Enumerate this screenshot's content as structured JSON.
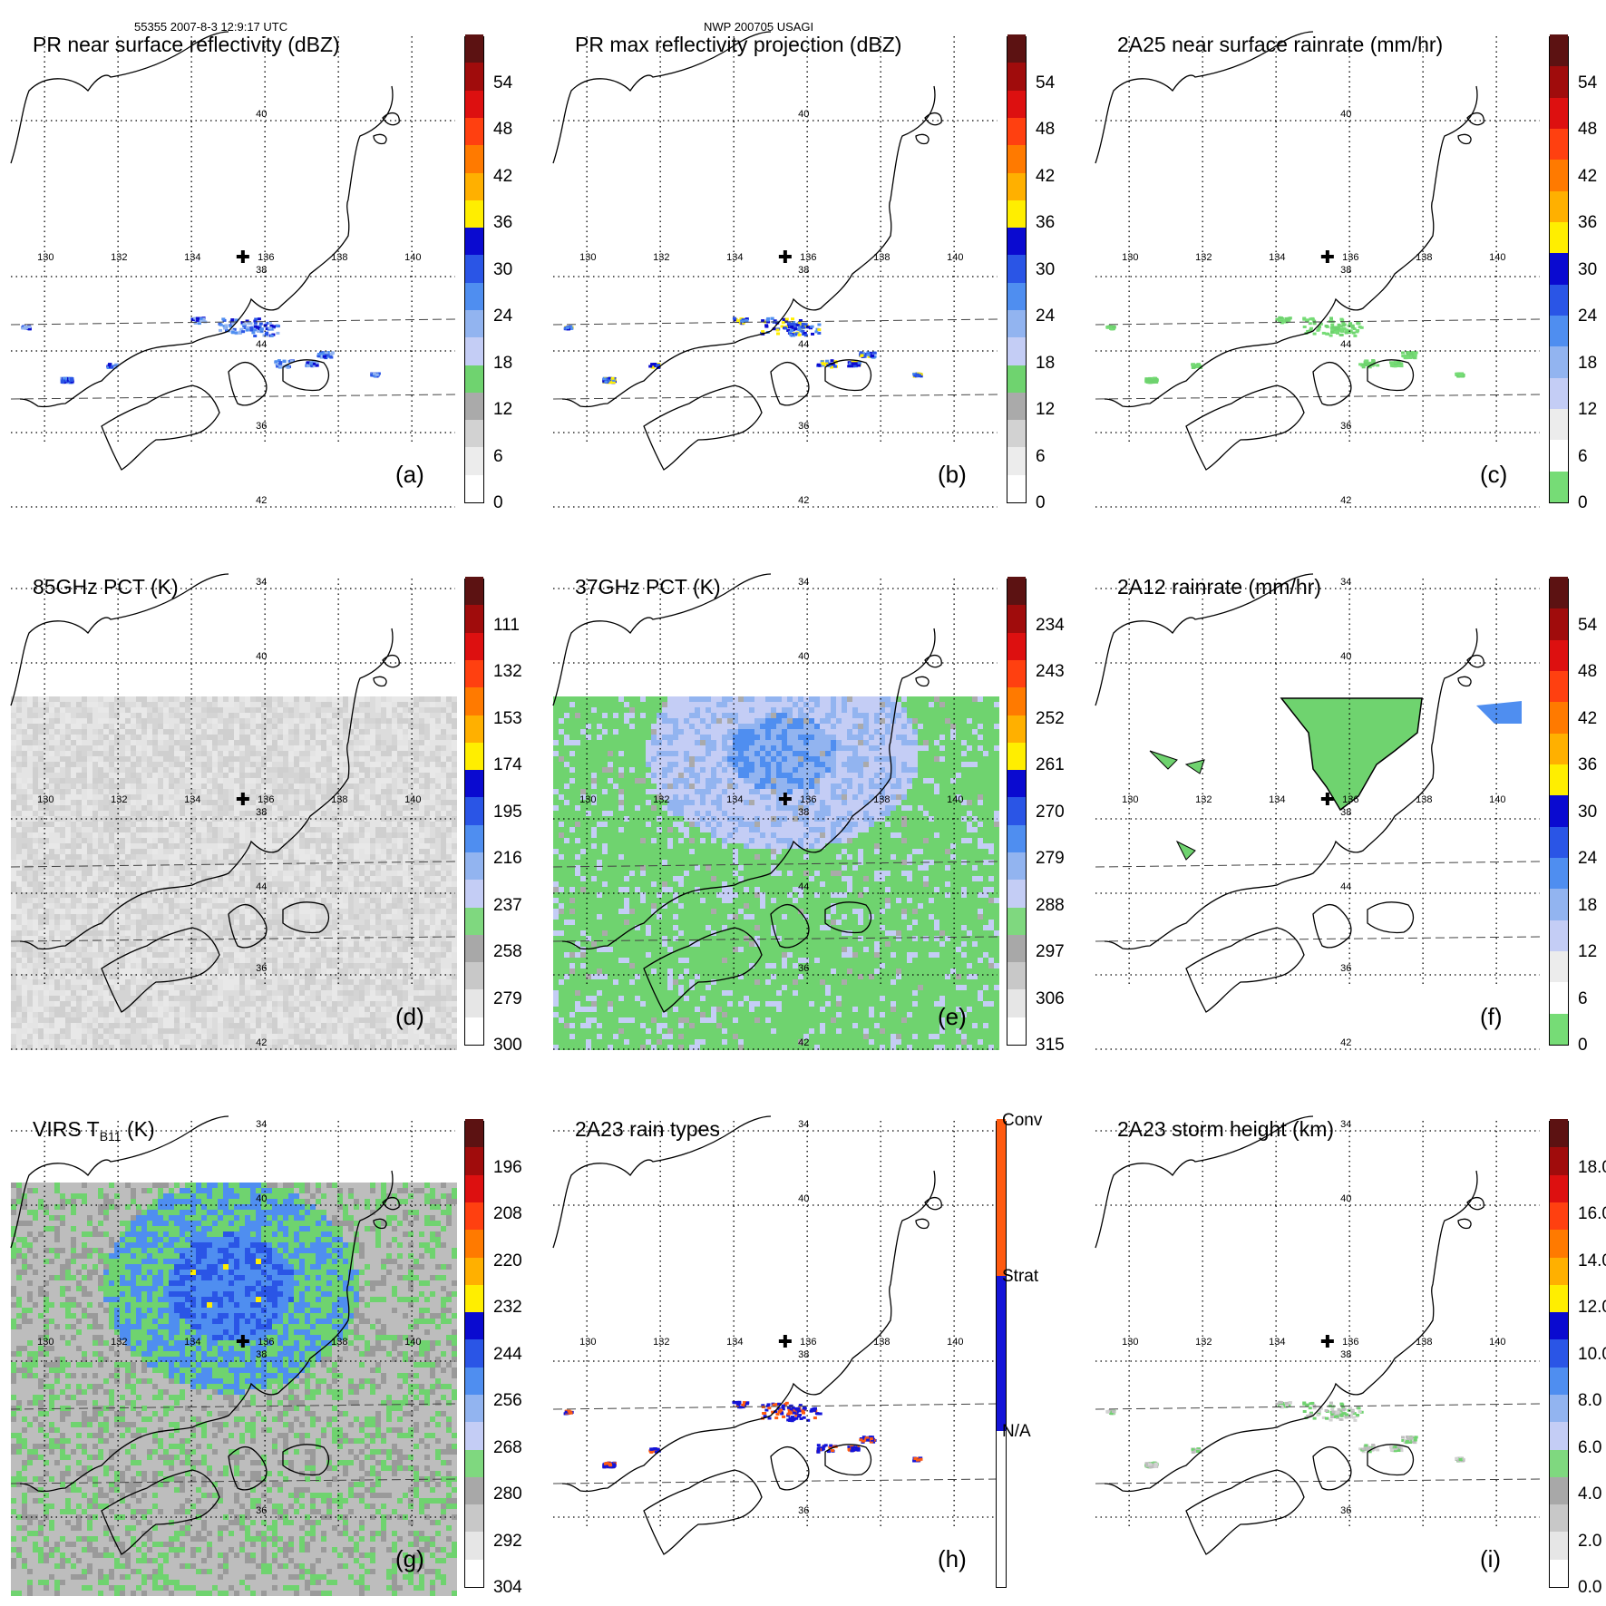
{
  "header": {
    "orbit_time": "55355 2007-8-3 12:9:17 UTC",
    "storm": "NWP 200705 USAGI"
  },
  "map": {
    "lon_labels": [
      "130",
      "132",
      "134",
      "136",
      "138",
      "140"
    ],
    "lat_labels": [
      "44",
      "42",
      "40",
      "38",
      "36",
      "34"
    ]
  },
  "scales": {
    "dbz": {
      "colors": [
        "#ffffff",
        "#ececec",
        "#d2d2d2",
        "#aaaaaa",
        "#6fd36f",
        "#c4cdf5",
        "#92b4f0",
        "#4f8ef0",
        "#2a55e6",
        "#0a0ad0",
        "#ffee00",
        "#ffb000",
        "#ff7a00",
        "#ff4010",
        "#dd1010",
        "#a00c0c",
        "#5c1212"
      ],
      "ticks": [
        "0",
        "6",
        "12",
        "18",
        "24",
        "30",
        "36",
        "42",
        "48",
        "54"
      ],
      "tick_pos": [
        0,
        0.1,
        0.2,
        0.3,
        0.4,
        0.5,
        0.6,
        0.7,
        0.8,
        0.9
      ]
    },
    "rain": {
      "colors": [
        "#76dc76",
        "#ffffff",
        "#ececec",
        "#c4cdf5",
        "#92b4f0",
        "#4f8ef0",
        "#2a55e6",
        "#0a0ad0",
        "#ffee00",
        "#ffb000",
        "#ff7a00",
        "#ff4010",
        "#dd1010",
        "#a00c0c",
        "#5c1212"
      ],
      "ticks": [
        "0",
        "6",
        "12",
        "18",
        "24",
        "30",
        "36",
        "42",
        "48",
        "54"
      ],
      "tick_pos": [
        0,
        0.1,
        0.2,
        0.3,
        0.4,
        0.5,
        0.6,
        0.7,
        0.8,
        0.9
      ]
    },
    "pct85": {
      "ticks": [
        "300",
        "279",
        "258",
        "237",
        "216",
        "195",
        "174",
        "153",
        "132",
        "111"
      ],
      "tick_pos": [
        0,
        0.1,
        0.2,
        0.3,
        0.4,
        0.5,
        0.6,
        0.7,
        0.8,
        0.9
      ]
    },
    "pct37": {
      "ticks": [
        "315",
        "306",
        "297",
        "288",
        "279",
        "270",
        "261",
        "252",
        "243",
        "234"
      ],
      "tick_pos": [
        0,
        0.1,
        0.2,
        0.3,
        0.4,
        0.5,
        0.6,
        0.7,
        0.8,
        0.9
      ]
    },
    "virs": {
      "ticks": [
        "304",
        "292",
        "280",
        "268",
        "256",
        "244",
        "232",
        "220",
        "208",
        "196"
      ],
      "tick_pos": [
        0,
        0.1,
        0.2,
        0.3,
        0.4,
        0.5,
        0.6,
        0.7,
        0.8,
        0.9
      ]
    },
    "raintype": {
      "colors": [
        "#ffffff",
        "#1414d8",
        "#ff5a10"
      ],
      "ticks": [
        "N/A",
        "Strat",
        "Conv"
      ],
      "tick_pos": [
        0.334,
        0.667,
        1.0
      ]
    },
    "height": {
      "ticks": [
        "0.0",
        "2.0",
        "4.0",
        "6.0",
        "8.0",
        "10.0",
        "12.0",
        "14.0",
        "16.0",
        "18.0"
      ],
      "tick_pos": [
        0,
        0.1,
        0.2,
        0.3,
        0.4,
        0.5,
        0.6,
        0.7,
        0.8,
        0.9
      ]
    }
  },
  "panels": [
    {
      "id": "a",
      "title": "PR near surface reflectivity (dBZ)",
      "label": "(a)",
      "scale": "dbz"
    },
    {
      "id": "b",
      "title": "PR max reflectivity projection (dBZ)",
      "label": "(b)",
      "scale": "dbz"
    },
    {
      "id": "c",
      "title": "2A25 near surface rainrate (mm/hr)",
      "label": "(c)",
      "scale": "rain"
    },
    {
      "id": "d",
      "title": "85GHz PCT (K)",
      "label": "(d)",
      "scale": "pct85"
    },
    {
      "id": "e",
      "title": "37GHz PCT (K)",
      "label": "(e)",
      "scale": "pct37"
    },
    {
      "id": "f",
      "title": "2A12 rainrate (mm/hr)",
      "label": "(f)",
      "scale": "rain"
    },
    {
      "id": "g",
      "title_main": "VIRS T",
      "title_sub": "B11",
      "title_unit": " (K)",
      "label": "(g)",
      "scale": "virs"
    },
    {
      "id": "h",
      "title": "2A23 rain types",
      "label": "(h)",
      "scale": "raintype"
    },
    {
      "id": "i",
      "title": "2A23 storm height (km)",
      "label": "(i)",
      "scale": "height"
    }
  ],
  "colors": {
    "storm_marker": "#000000",
    "coast": "#000000"
  }
}
